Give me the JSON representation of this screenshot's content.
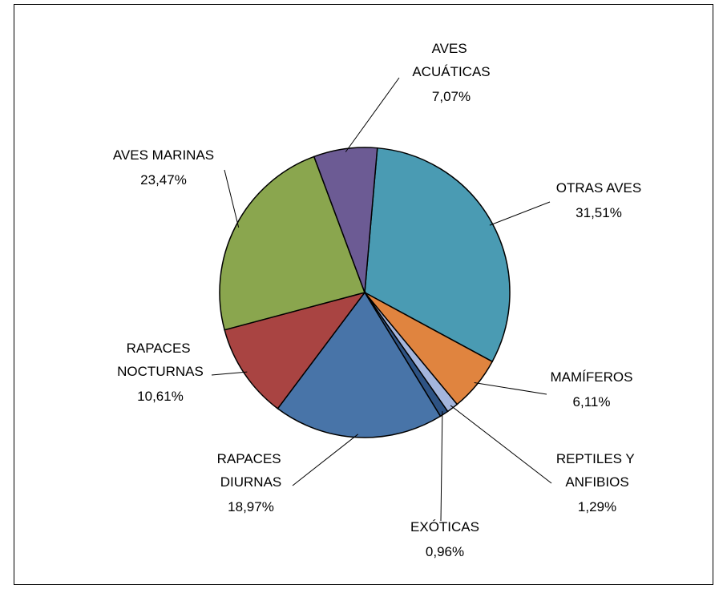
{
  "chart_data": {
    "type": "pie",
    "categories": [
      "OTRAS AVES",
      "MAMÍFEROS",
      "REPTILES Y ANFIBIOS",
      "EXÓTICAS",
      "RAPACES DIURNAS",
      "RAPACES NOCTURNAS",
      "AVES MARINAS",
      "AVES ACUÁTICAS"
    ],
    "values": [
      31.51,
      6.11,
      1.29,
      0.96,
      18.97,
      10.61,
      23.47,
      7.07
    ],
    "value_labels": [
      "31,51%",
      "6,11%",
      "1,29%",
      "0,96%",
      "18,97%",
      "10,61%",
      "23,47%",
      "7,07%"
    ],
    "colors": [
      "#4a9bb3",
      "#e0843f",
      "#a4b5dc",
      "#2e5384",
      "#4874a8",
      "#a94442",
      "#8aa64e",
      "#6c5b94"
    ]
  }
}
